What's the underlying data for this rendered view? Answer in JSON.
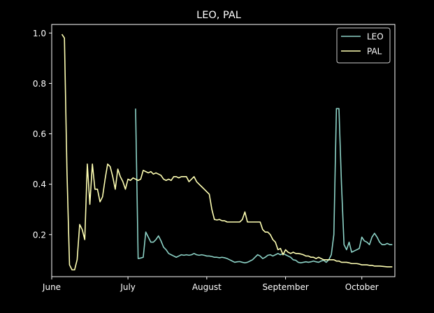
{
  "chart_data": {
    "type": "line",
    "title": "LEO, PAL",
    "xlabel": "",
    "ylabel": "",
    "x_type": "date",
    "xlim": [
      "2023-06-01",
      "2023-10-14"
    ],
    "ylim": [
      0.033,
      1.034
    ],
    "x_ticks": [
      {
        "date": "2023-06-01",
        "label": "June"
      },
      {
        "date": "2023-07-01",
        "label": "July"
      },
      {
        "date": "2023-08-01",
        "label": "August"
      },
      {
        "date": "2023-09-01",
        "label": "September"
      },
      {
        "date": "2023-10-01",
        "label": "October"
      }
    ],
    "y_ticks": [
      {
        "value": 0.2,
        "label": "0.2"
      },
      {
        "value": 0.4,
        "label": "0.4"
      },
      {
        "value": 0.6,
        "label": "0.6"
      },
      {
        "value": 0.8,
        "label": "0.8"
      },
      {
        "value": 1.0,
        "label": "1.0"
      }
    ],
    "grid": false,
    "legend_position": "top-right",
    "series": [
      {
        "name": "LEO",
        "color": "#8dd3c7",
        "points": [
          [
            "2023-07-04",
            0.7
          ],
          [
            "2023-07-05",
            0.105
          ],
          [
            "2023-07-06",
            0.107
          ],
          [
            "2023-07-07",
            0.11
          ],
          [
            "2023-07-08",
            0.21
          ],
          [
            "2023-07-09",
            0.19
          ],
          [
            "2023-07-10",
            0.17
          ],
          [
            "2023-07-11",
            0.17
          ],
          [
            "2023-07-12",
            0.18
          ],
          [
            "2023-07-13",
            0.195
          ],
          [
            "2023-07-14",
            0.175
          ],
          [
            "2023-07-15",
            0.15
          ],
          [
            "2023-07-16",
            0.14
          ],
          [
            "2023-07-17",
            0.125
          ],
          [
            "2023-07-18",
            0.12
          ],
          [
            "2023-07-19",
            0.115
          ],
          [
            "2023-07-20",
            0.11
          ],
          [
            "2023-07-21",
            0.115
          ],
          [
            "2023-07-22",
            0.12
          ],
          [
            "2023-07-23",
            0.118
          ],
          [
            "2023-07-24",
            0.12
          ],
          [
            "2023-07-25",
            0.118
          ],
          [
            "2023-07-26",
            0.12
          ],
          [
            "2023-07-27",
            0.125
          ],
          [
            "2023-07-28",
            0.12
          ],
          [
            "2023-07-29",
            0.118
          ],
          [
            "2023-07-30",
            0.12
          ],
          [
            "2023-07-31",
            0.118
          ],
          [
            "2023-08-01",
            0.115
          ],
          [
            "2023-08-02",
            0.115
          ],
          [
            "2023-08-03",
            0.113
          ],
          [
            "2023-08-04",
            0.11
          ],
          [
            "2023-08-05",
            0.11
          ],
          [
            "2023-08-06",
            0.108
          ],
          [
            "2023-08-07",
            0.11
          ],
          [
            "2023-08-08",
            0.108
          ],
          [
            "2023-08-09",
            0.105
          ],
          [
            "2023-08-10",
            0.1
          ],
          [
            "2023-08-11",
            0.095
          ],
          [
            "2023-08-12",
            0.09
          ],
          [
            "2023-08-13",
            0.092
          ],
          [
            "2023-08-14",
            0.093
          ],
          [
            "2023-08-15",
            0.09
          ],
          [
            "2023-08-16",
            0.088
          ],
          [
            "2023-08-17",
            0.09
          ],
          [
            "2023-08-18",
            0.095
          ],
          [
            "2023-08-19",
            0.1
          ],
          [
            "2023-08-20",
            0.11
          ],
          [
            "2023-08-21",
            0.12
          ],
          [
            "2023-08-22",
            0.115
          ],
          [
            "2023-08-23",
            0.105
          ],
          [
            "2023-08-24",
            0.11
          ],
          [
            "2023-08-25",
            0.118
          ],
          [
            "2023-08-26",
            0.12
          ],
          [
            "2023-08-27",
            0.115
          ],
          [
            "2023-08-28",
            0.12
          ],
          [
            "2023-08-29",
            0.125
          ],
          [
            "2023-08-30",
            0.12
          ],
          [
            "2023-08-31",
            0.125
          ],
          [
            "2023-09-01",
            0.12
          ],
          [
            "2023-09-02",
            0.115
          ],
          [
            "2023-09-03",
            0.11
          ],
          [
            "2023-09-04",
            0.1
          ],
          [
            "2023-09-05",
            0.098
          ],
          [
            "2023-09-06",
            0.09
          ],
          [
            "2023-09-07",
            0.088
          ],
          [
            "2023-09-08",
            0.09
          ],
          [
            "2023-09-09",
            0.092
          ],
          [
            "2023-09-10",
            0.09
          ],
          [
            "2023-09-11",
            0.092
          ],
          [
            "2023-09-12",
            0.095
          ],
          [
            "2023-09-13",
            0.092
          ],
          [
            "2023-09-14",
            0.09
          ],
          [
            "2023-09-15",
            0.095
          ],
          [
            "2023-09-16",
            0.098
          ],
          [
            "2023-09-17",
            0.09
          ],
          [
            "2023-09-18",
            0.1
          ],
          [
            "2023-09-19",
            0.12
          ],
          [
            "2023-09-20",
            0.2
          ],
          [
            "2023-09-21",
            0.7
          ],
          [
            "2023-09-22",
            0.7
          ],
          [
            "2023-09-23",
            0.4
          ],
          [
            "2023-09-24",
            0.16
          ],
          [
            "2023-09-25",
            0.14
          ],
          [
            "2023-09-26",
            0.17
          ],
          [
            "2023-09-27",
            0.13
          ],
          [
            "2023-09-28",
            0.135
          ],
          [
            "2023-09-29",
            0.14
          ],
          [
            "2023-09-30",
            0.145
          ],
          [
            "2023-10-01",
            0.19
          ],
          [
            "2023-10-02",
            0.175
          ],
          [
            "2023-10-03",
            0.17
          ],
          [
            "2023-10-04",
            0.16
          ],
          [
            "2023-10-05",
            0.19
          ],
          [
            "2023-10-06",
            0.205
          ],
          [
            "2023-10-07",
            0.19
          ],
          [
            "2023-10-08",
            0.17
          ],
          [
            "2023-10-09",
            0.16
          ],
          [
            "2023-10-10",
            0.16
          ],
          [
            "2023-10-11",
            0.165
          ],
          [
            "2023-10-12",
            0.16
          ],
          [
            "2023-10-13",
            0.16
          ]
        ]
      },
      {
        "name": "PAL",
        "color": "#ffffb3",
        "points": [
          [
            "2023-06-05",
            0.995
          ],
          [
            "2023-06-06",
            0.98
          ],
          [
            "2023-06-07",
            0.45
          ],
          [
            "2023-06-08",
            0.08
          ],
          [
            "2023-06-09",
            0.06
          ],
          [
            "2023-06-10",
            0.06
          ],
          [
            "2023-06-11",
            0.1
          ],
          [
            "2023-06-12",
            0.24
          ],
          [
            "2023-06-13",
            0.22
          ],
          [
            "2023-06-14",
            0.18
          ],
          [
            "2023-06-15",
            0.48
          ],
          [
            "2023-06-16",
            0.32
          ],
          [
            "2023-06-17",
            0.48
          ],
          [
            "2023-06-18",
            0.38
          ],
          [
            "2023-06-19",
            0.38
          ],
          [
            "2023-06-20",
            0.33
          ],
          [
            "2023-06-21",
            0.35
          ],
          [
            "2023-06-22",
            0.42
          ],
          [
            "2023-06-23",
            0.48
          ],
          [
            "2023-06-24",
            0.47
          ],
          [
            "2023-06-25",
            0.43
          ],
          [
            "2023-06-26",
            0.38
          ],
          [
            "2023-06-27",
            0.46
          ],
          [
            "2023-06-28",
            0.43
          ],
          [
            "2023-06-29",
            0.41
          ],
          [
            "2023-06-30",
            0.38
          ],
          [
            "2023-07-01",
            0.42
          ],
          [
            "2023-07-02",
            0.415
          ],
          [
            "2023-07-03",
            0.425
          ],
          [
            "2023-07-04",
            0.42
          ],
          [
            "2023-07-05",
            0.415
          ],
          [
            "2023-07-06",
            0.42
          ],
          [
            "2023-07-07",
            0.455
          ],
          [
            "2023-07-08",
            0.45
          ],
          [
            "2023-07-09",
            0.445
          ],
          [
            "2023-07-10",
            0.45
          ],
          [
            "2023-07-11",
            0.44
          ],
          [
            "2023-07-12",
            0.445
          ],
          [
            "2023-07-13",
            0.44
          ],
          [
            "2023-07-14",
            0.435
          ],
          [
            "2023-07-15",
            0.42
          ],
          [
            "2023-07-16",
            0.415
          ],
          [
            "2023-07-17",
            0.42
          ],
          [
            "2023-07-18",
            0.415
          ],
          [
            "2023-07-19",
            0.43
          ],
          [
            "2023-07-20",
            0.43
          ],
          [
            "2023-07-21",
            0.425
          ],
          [
            "2023-07-22",
            0.43
          ],
          [
            "2023-07-23",
            0.43
          ],
          [
            "2023-07-24",
            0.43
          ],
          [
            "2023-07-25",
            0.41
          ],
          [
            "2023-07-26",
            0.42
          ],
          [
            "2023-07-27",
            0.43
          ],
          [
            "2023-07-28",
            0.41
          ],
          [
            "2023-07-29",
            0.4
          ],
          [
            "2023-07-30",
            0.39
          ],
          [
            "2023-07-31",
            0.38
          ],
          [
            "2023-08-01",
            0.37
          ],
          [
            "2023-08-02",
            0.36
          ],
          [
            "2023-08-03",
            0.3
          ],
          [
            "2023-08-04",
            0.26
          ],
          [
            "2023-08-05",
            0.258
          ],
          [
            "2023-08-06",
            0.26
          ],
          [
            "2023-08-07",
            0.255
          ],
          [
            "2023-08-08",
            0.255
          ],
          [
            "2023-08-09",
            0.25
          ],
          [
            "2023-08-10",
            0.25
          ],
          [
            "2023-08-11",
            0.25
          ],
          [
            "2023-08-12",
            0.25
          ],
          [
            "2023-08-13",
            0.25
          ],
          [
            "2023-08-14",
            0.25
          ],
          [
            "2023-08-15",
            0.26
          ],
          [
            "2023-08-16",
            0.29
          ],
          [
            "2023-08-17",
            0.25
          ],
          [
            "2023-08-18",
            0.25
          ],
          [
            "2023-08-19",
            0.25
          ],
          [
            "2023-08-20",
            0.25
          ],
          [
            "2023-08-21",
            0.25
          ],
          [
            "2023-08-22",
            0.25
          ],
          [
            "2023-08-23",
            0.22
          ],
          [
            "2023-08-24",
            0.21
          ],
          [
            "2023-08-25",
            0.21
          ],
          [
            "2023-08-26",
            0.2
          ],
          [
            "2023-08-27",
            0.18
          ],
          [
            "2023-08-28",
            0.17
          ],
          [
            "2023-08-29",
            0.14
          ],
          [
            "2023-08-30",
            0.145
          ],
          [
            "2023-08-31",
            0.12
          ],
          [
            "2023-09-01",
            0.14
          ],
          [
            "2023-09-02",
            0.13
          ],
          [
            "2023-09-03",
            0.125
          ],
          [
            "2023-09-04",
            0.13
          ],
          [
            "2023-09-05",
            0.125
          ],
          [
            "2023-09-06",
            0.125
          ],
          [
            "2023-09-07",
            0.123
          ],
          [
            "2023-09-08",
            0.12
          ],
          [
            "2023-09-09",
            0.115
          ],
          [
            "2023-09-10",
            0.115
          ],
          [
            "2023-09-11",
            0.11
          ],
          [
            "2023-09-12",
            0.11
          ],
          [
            "2023-09-13",
            0.105
          ],
          [
            "2023-09-14",
            0.11
          ],
          [
            "2023-09-15",
            0.105
          ],
          [
            "2023-09-16",
            0.1
          ],
          [
            "2023-09-17",
            0.1
          ],
          [
            "2023-09-18",
            0.1
          ],
          [
            "2023-09-19",
            0.1
          ],
          [
            "2023-09-20",
            0.1
          ],
          [
            "2023-09-21",
            0.095
          ],
          [
            "2023-09-22",
            0.095
          ],
          [
            "2023-09-23",
            0.09
          ],
          [
            "2023-09-24",
            0.09
          ],
          [
            "2023-09-25",
            0.09
          ],
          [
            "2023-09-26",
            0.088
          ],
          [
            "2023-09-27",
            0.085
          ],
          [
            "2023-09-28",
            0.085
          ],
          [
            "2023-09-29",
            0.085
          ],
          [
            "2023-09-30",
            0.083
          ],
          [
            "2023-10-01",
            0.08
          ],
          [
            "2023-10-02",
            0.08
          ],
          [
            "2023-10-03",
            0.08
          ],
          [
            "2023-10-04",
            0.078
          ],
          [
            "2023-10-05",
            0.078
          ],
          [
            "2023-10-06",
            0.075
          ],
          [
            "2023-10-07",
            0.075
          ],
          [
            "2023-10-08",
            0.075
          ],
          [
            "2023-10-09",
            0.074
          ],
          [
            "2023-10-10",
            0.073
          ],
          [
            "2023-10-11",
            0.072
          ],
          [
            "2023-10-12",
            0.072
          ],
          [
            "2023-10-13",
            0.072
          ]
        ]
      }
    ]
  }
}
